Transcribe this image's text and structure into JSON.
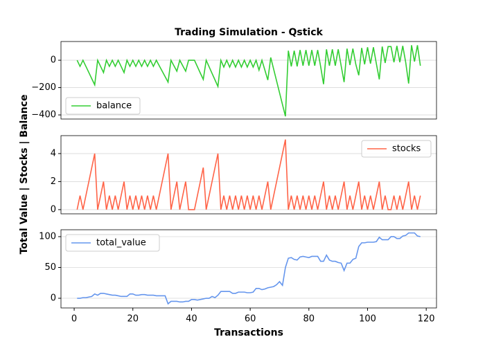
{
  "title": "Trading Simulation - Qstick",
  "xlabel": "Transactions",
  "ylabel": "Total Value | Stocks | Balance",
  "chart_data": [
    {
      "type": "line",
      "legend": "lower left",
      "grid": true,
      "ylim": [
        -430,
        137
      ],
      "yticks": [
        {
          "value": -400,
          "label": "−400"
        },
        {
          "value": -200,
          "label": "−200"
        },
        0
      ],
      "x": [
        1,
        2,
        3,
        4,
        5,
        6,
        7,
        8,
        9,
        10,
        11,
        12,
        13,
        14,
        15,
        16,
        17,
        18,
        19,
        20,
        21,
        22,
        23,
        24,
        25,
        26,
        27,
        28,
        29,
        30,
        31,
        32,
        33,
        34,
        35,
        36,
        37,
        38,
        39,
        40,
        41,
        42,
        43,
        44,
        45,
        46,
        47,
        48,
        49,
        50,
        51,
        52,
        53,
        54,
        55,
        56,
        57,
        58,
        59,
        60,
        61,
        62,
        63,
        64,
        65,
        66,
        67,
        68,
        69,
        70,
        71,
        72,
        73,
        74,
        75,
        76,
        77,
        78,
        79,
        80,
        81,
        82,
        83,
        84,
        85,
        86,
        87,
        88,
        89,
        90,
        91,
        92,
        93,
        94,
        95,
        96,
        97,
        98,
        99,
        100,
        101,
        102,
        103,
        104,
        105,
        106,
        107,
        108,
        109,
        110,
        111,
        112,
        113,
        114,
        115,
        116,
        117,
        118
      ],
      "series": [
        {
          "name": "balance",
          "color": "#32cd32",
          "values": [
            0,
            -45,
            0,
            -45,
            -90,
            -135,
            -180,
            0,
            -45,
            -90,
            0,
            -45,
            0,
            -45,
            0,
            -45,
            -90,
            0,
            -45,
            0,
            -45,
            0,
            -45,
            0,
            -45,
            0,
            -45,
            0,
            -40,
            -80,
            -120,
            -160,
            0,
            -40,
            -80,
            0,
            -40,
            -80,
            0,
            0,
            0,
            -47,
            -94,
            -140,
            0,
            -48,
            -96,
            -144,
            -192,
            0,
            -50,
            0,
            -50,
            0,
            -50,
            0,
            -50,
            0,
            -50,
            0,
            -50,
            0,
            -72,
            0,
            -72,
            -145,
            20,
            -66,
            -152,
            -238,
            -324,
            -410,
            70,
            -45,
            70,
            -45,
            75,
            -40,
            75,
            -40,
            75,
            -40,
            75,
            -45,
            -175,
            80,
            -40,
            80,
            -40,
            80,
            -40,
            -160,
            85,
            -35,
            85,
            -30,
            -110,
            90,
            -30,
            95,
            -25,
            95,
            -25,
            -140,
            100,
            -20,
            100,
            100,
            -15,
            105,
            -15,
            105,
            -15,
            -170,
            110,
            -10,
            110,
            -40
          ]
        }
      ]
    },
    {
      "type": "line",
      "legend": "upper right",
      "grid": true,
      "ylim": [
        -0.3,
        5.28
      ],
      "yticks": [
        0,
        2,
        4
      ],
      "x": [
        1,
        2,
        3,
        4,
        5,
        6,
        7,
        8,
        9,
        10,
        11,
        12,
        13,
        14,
        15,
        16,
        17,
        18,
        19,
        20,
        21,
        22,
        23,
        24,
        25,
        26,
        27,
        28,
        29,
        30,
        31,
        32,
        33,
        34,
        35,
        36,
        37,
        38,
        39,
        40,
        41,
        42,
        43,
        44,
        45,
        46,
        47,
        48,
        49,
        50,
        51,
        52,
        53,
        54,
        55,
        56,
        57,
        58,
        59,
        60,
        61,
        62,
        63,
        64,
        65,
        66,
        67,
        68,
        69,
        70,
        71,
        72,
        73,
        74,
        75,
        76,
        77,
        78,
        79,
        80,
        81,
        82,
        83,
        84,
        85,
        86,
        87,
        88,
        89,
        90,
        91,
        92,
        93,
        94,
        95,
        96,
        97,
        98,
        99,
        100,
        101,
        102,
        103,
        104,
        105,
        106,
        107,
        108,
        109,
        110,
        111,
        112,
        113,
        114,
        115,
        116,
        117,
        118
      ],
      "series": [
        {
          "name": "stocks",
          "color": "#ff6347",
          "values": [
            0,
            1,
            0,
            1,
            2,
            3,
            4,
            0,
            1,
            2,
            0,
            1,
            0,
            1,
            0,
            1,
            2,
            0,
            1,
            0,
            1,
            0,
            1,
            0,
            1,
            0,
            1,
            0,
            1,
            2,
            3,
            4,
            0,
            1,
            2,
            0,
            1,
            2,
            0,
            0,
            0,
            1,
            2,
            3,
            0,
            1,
            2,
            3,
            4,
            0,
            1,
            0,
            1,
            0,
            1,
            0,
            1,
            0,
            1,
            0,
            1,
            0,
            1,
            0,
            1,
            2,
            0,
            1,
            2,
            3,
            4,
            5,
            0,
            1,
            0,
            1,
            0,
            1,
            0,
            1,
            0,
            1,
            0,
            1,
            2,
            0,
            1,
            0,
            1,
            0,
            1,
            2,
            0,
            1,
            0,
            1,
            2,
            0,
            1,
            0,
            1,
            0,
            1,
            2,
            0,
            1,
            0,
            0,
            1,
            0,
            1,
            0,
            1,
            2,
            0,
            1,
            0,
            1
          ]
        }
      ]
    },
    {
      "type": "line",
      "legend": "upper left",
      "grid": true,
      "ylim": [
        -15.7,
        111.2
      ],
      "yticks": [
        0,
        50,
        100
      ],
      "xlim": [
        -4.5,
        123.5
      ],
      "xticks": [
        0,
        20,
        40,
        60,
        80,
        100,
        120
      ],
      "x": [
        1,
        2,
        3,
        4,
        5,
        6,
        7,
        8,
        9,
        10,
        11,
        12,
        13,
        14,
        15,
        16,
        17,
        18,
        19,
        20,
        21,
        22,
        23,
        24,
        25,
        26,
        27,
        28,
        29,
        30,
        31,
        32,
        33,
        34,
        35,
        36,
        37,
        38,
        39,
        40,
        41,
        42,
        43,
        44,
        45,
        46,
        47,
        48,
        49,
        50,
        51,
        52,
        53,
        54,
        55,
        56,
        57,
        58,
        59,
        60,
        61,
        62,
        63,
        64,
        65,
        66,
        67,
        68,
        69,
        70,
        71,
        72,
        73,
        74,
        75,
        76,
        77,
        78,
        79,
        80,
        81,
        82,
        83,
        84,
        85,
        86,
        87,
        88,
        89,
        90,
        91,
        92,
        93,
        94,
        95,
        96,
        97,
        98,
        99,
        100,
        101,
        102,
        103,
        104,
        105,
        106,
        107,
        108,
        109,
        110,
        111,
        112,
        113,
        114,
        115,
        116,
        117,
        118
      ],
      "series": [
        {
          "name": "total_value",
          "color": "#6495ed",
          "values": [
            0,
            0,
            1,
            1,
            2,
            3,
            7,
            5,
            8,
            8,
            7,
            6,
            5,
            5,
            4,
            3,
            3,
            3,
            7,
            7,
            5,
            5,
            6,
            6,
            5,
            5,
            5,
            4,
            4,
            4,
            4,
            -9,
            -5,
            -5,
            -5,
            -6,
            -6,
            -5,
            -5,
            -2,
            -2,
            -3,
            -2,
            -1,
            0,
            0,
            3,
            1,
            5,
            11,
            11,
            11,
            11,
            8,
            8,
            10,
            10,
            10,
            9,
            9,
            10,
            16,
            16,
            14,
            15,
            17,
            18,
            19,
            22,
            27,
            21,
            50,
            65,
            66,
            63,
            62,
            67,
            68,
            67,
            66,
            68,
            68,
            68,
            60,
            60,
            70,
            62,
            60,
            60,
            58,
            57,
            45,
            57,
            57,
            63,
            65,
            84,
            90,
            90,
            91,
            91,
            91,
            92,
            99,
            95,
            95,
            95,
            100,
            100,
            97,
            97,
            101,
            102,
            106,
            106,
            106,
            101,
            100
          ]
        }
      ]
    }
  ]
}
